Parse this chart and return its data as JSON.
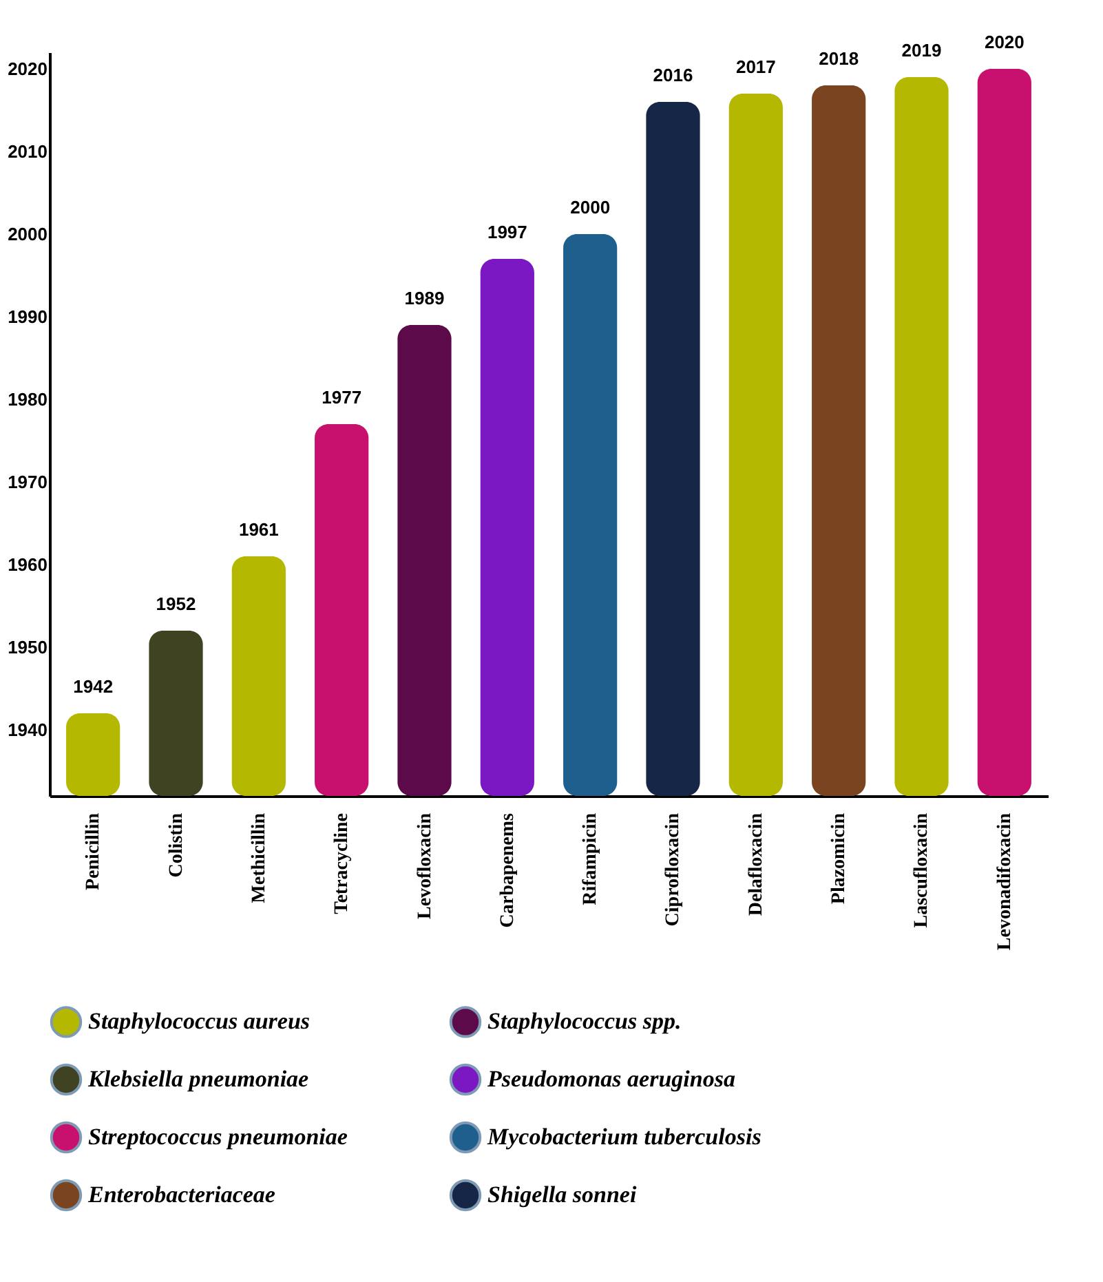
{
  "chart_data": {
    "type": "bar",
    "categories": [
      "Penicillin",
      "Colistin",
      "Methicillin",
      "Tetracycline",
      "Levofloxacin",
      "Carbapenems",
      "Rifampicin",
      "Ciprofloxacin",
      "Delafloxacin",
      "Plazomicin",
      "Lascufloxacin",
      "Levonadifoxacin"
    ],
    "series": [
      {
        "name": "Staphylococcus aureus",
        "color": "#b5b800",
        "values": [
          1942,
          null,
          1961,
          null,
          null,
          null,
          null,
          null,
          2017,
          null,
          2019,
          null
        ]
      },
      {
        "name": "Staphylococcus spp.",
        "color": "#5c0a4a",
        "values": [
          null,
          null,
          null,
          null,
          1989,
          null,
          null,
          null,
          null,
          null,
          null,
          null
        ]
      },
      {
        "name": "Klebsiella pneumoniae",
        "color": "#3f4322",
        "values": [
          null,
          1952,
          null,
          null,
          null,
          null,
          null,
          null,
          null,
          null,
          null,
          null
        ]
      },
      {
        "name": "Pseudomonas aeruginosa",
        "color": "#7b18c4",
        "values": [
          null,
          null,
          null,
          null,
          null,
          1997,
          null,
          null,
          null,
          null,
          null,
          null
        ]
      },
      {
        "name": "Streptococcus pneumoniae",
        "color": "#c8106f",
        "values": [
          null,
          null,
          null,
          1977,
          null,
          null,
          null,
          null,
          null,
          null,
          null,
          2020
        ]
      },
      {
        "name": "Mycobacterium tuberculosis",
        "color": "#1f5f8e",
        "values": [
          null,
          null,
          null,
          null,
          null,
          null,
          2000,
          null,
          null,
          null,
          null,
          null
        ]
      },
      {
        "name": "Enterobacteriaceae",
        "color": "#7a4420",
        "values": [
          null,
          null,
          null,
          null,
          null,
          null,
          null,
          null,
          null,
          2018,
          null,
          null
        ]
      },
      {
        "name": "Shigella sonnei",
        "color": "#152646",
        "values": [
          null,
          null,
          null,
          null,
          null,
          null,
          null,
          2016,
          null,
          null,
          null,
          null
        ]
      }
    ],
    "ylim": [
      1932,
      2022
    ],
    "yticks": [
      1940,
      1950,
      1960,
      1970,
      1980,
      1990,
      2000,
      2010,
      2020
    ],
    "data_labels": true,
    "legend": "bottom"
  }
}
